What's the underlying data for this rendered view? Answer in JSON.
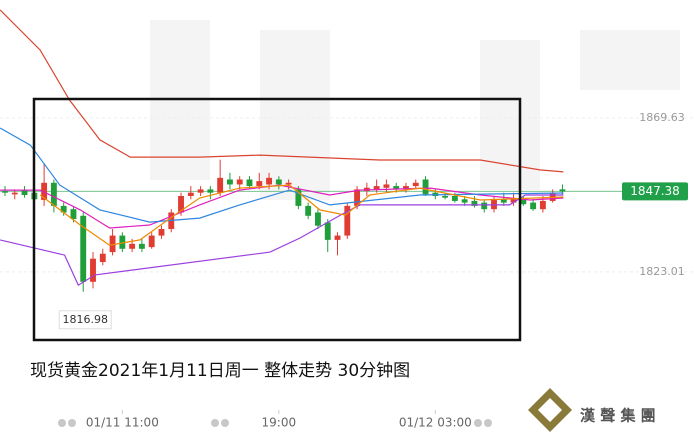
{
  "chart_data": {
    "type": "candlestick",
    "caption": "现货黄金2021年1月11日周一 整体走势  30分钟图",
    "logo_text": "漢 聲 集 團",
    "xlim": [
      -0.51,
      70.45
    ],
    "ylim": [
      1781.15,
      1905.39
    ],
    "xticks": [
      {
        "value": 12,
        "label": "01/11 11:00"
      },
      {
        "value": 28,
        "label": "19:00"
      },
      {
        "value": 44,
        "label": "01/12 03:00"
      }
    ],
    "yticks": [
      1869.63,
      1823.01
    ],
    "grid": true,
    "last_price": 1847.38,
    "last_price_color": "#21a04a",
    "low_annotation": 1816.98,
    "candles": {
      "up_color": "#e03c31",
      "down_color": "#1f9e3a",
      "open": [
        1847.5,
        1846.5,
        1847.8,
        1847,
        1844.8,
        1850,
        1843,
        1842,
        1840,
        1820,
        1826,
        1829,
        1834,
        1830,
        1831.5,
        1830.5,
        1834,
        1836,
        1841,
        1846,
        1847,
        1848,
        1847,
        1851,
        1849.5,
        1851,
        1849,
        1849.5,
        1851,
        1849.5,
        1848,
        1843,
        1841,
        1838,
        1832.7,
        1834,
        1843,
        1847.5,
        1848,
        1848.5,
        1849,
        1848,
        1849,
        1851,
        1847,
        1846,
        1846,
        1845,
        1844.5,
        1844,
        1842,
        1845,
        1844,
        1845,
        1844,
        1842,
        1844.5,
        1848
      ],
      "high": [
        1849,
        1848,
        1849,
        1848.5,
        1856,
        1851,
        1844,
        1843,
        1841,
        1829,
        1830,
        1836,
        1835,
        1833,
        1833,
        1835,
        1837,
        1842,
        1847,
        1849,
        1849,
        1849,
        1857,
        1853,
        1852,
        1852,
        1853,
        1853,
        1852,
        1851,
        1849,
        1844,
        1842,
        1839,
        1835,
        1844,
        1849,
        1850,
        1851,
        1851,
        1850,
        1850,
        1851,
        1852,
        1848,
        1847,
        1847,
        1846,
        1846,
        1845,
        1846,
        1847,
        1847,
        1846,
        1845,
        1846,
        1848,
        1849.5
      ],
      "low": [
        1846,
        1845,
        1845.5,
        1844,
        1843,
        1841,
        1840,
        1838,
        1816.98,
        1818,
        1825,
        1828,
        1829,
        1829,
        1829,
        1830,
        1833,
        1835,
        1840,
        1845,
        1846,
        1845,
        1846,
        1848,
        1848,
        1848,
        1848,
        1848,
        1848,
        1848,
        1842,
        1839,
        1836,
        1829,
        1828,
        1833,
        1842,
        1846,
        1847,
        1847,
        1847,
        1847,
        1848,
        1846,
        1845,
        1845,
        1844,
        1843,
        1842.5,
        1841,
        1841,
        1843,
        1843,
        1843,
        1841.5,
        1841,
        1844,
        1846.5
      ],
      "close": [
        1847,
        1847,
        1846.3,
        1845,
        1850,
        1843,
        1841,
        1839,
        1820,
        1827,
        1828.5,
        1834,
        1830,
        1831.5,
        1830,
        1834,
        1836,
        1841,
        1846,
        1847,
        1848,
        1847,
        1851.5,
        1849.5,
        1851,
        1849,
        1850.5,
        1851.5,
        1849.5,
        1850,
        1843,
        1840,
        1837,
        1832.7,
        1834,
        1843,
        1848,
        1848.5,
        1849,
        1849.5,
        1848,
        1849,
        1850,
        1846.5,
        1846,
        1845.5,
        1844.5,
        1844,
        1843,
        1842,
        1845,
        1844,
        1845,
        1843.5,
        1842,
        1844.5,
        1847,
        1847.4
      ]
    },
    "lines": [
      {
        "color": "#d9452f",
        "x": [
          -0.5,
          3.6,
          6.6,
          9.7,
          12.8,
          19.9,
          26.1,
          38.3,
          48.6,
          54.7,
          57.1
        ],
        "values": [
          1902.4,
          1890.2,
          1875.1,
          1863,
          1857.8,
          1857.8,
          1858.4,
          1856.9,
          1856.9,
          1853.9,
          1853.3
        ]
      },
      {
        "color": "#9b3fe0",
        "x": [
          -0.5,
          6.1,
          7.5,
          9.2,
          27.1,
          30.2,
          34.3,
          36.3,
          51.6,
          53.2,
          57.1
        ],
        "values": [
          1832.7,
          1828.1,
          1819,
          1822.1,
          1829,
          1833.3,
          1840.2,
          1843.3,
          1843.3,
          1846.3,
          1846.3
        ]
      },
      {
        "color": "#e020c0",
        "x": [
          -0.5,
          3.6,
          7.7,
          10.7,
          14.8,
          19.9,
          24.0,
          28.1,
          33.2,
          36.3,
          43.5,
          48.6,
          53.7,
          57.1
        ],
        "values": [
          1847.8,
          1847.8,
          1841.8,
          1836.3,
          1837.2,
          1843.3,
          1847.8,
          1849.3,
          1846.3,
          1847.8,
          1848.4,
          1846.3,
          1844.8,
          1845.4
        ]
      },
      {
        "color": "#2f86e0",
        "x": [
          -0.5,
          2.6,
          5.6,
          9.7,
          14.8,
          19.9,
          24.0,
          29.1,
          33.2,
          42.4,
          57.1
        ],
        "values": [
          1866.6,
          1861.4,
          1849.3,
          1841.8,
          1838.1,
          1839.3,
          1843.3,
          1847.8,
          1843.3,
          1846.3,
          1846.9
        ]
      },
      {
        "color": "#f08a00",
        "x": [
          3.6,
          7.7,
          10.7,
          13.8,
          16.9,
          19.9,
          24.0,
          29.1,
          32.2,
          34.8,
          37.3,
          42.4,
          48.6,
          57.1
        ],
        "values": [
          1846.3,
          1837.2,
          1831.1,
          1832.7,
          1839.3,
          1845.4,
          1848.4,
          1849.3,
          1841.8,
          1840.2,
          1846.3,
          1848.4,
          1844.8,
          1845.7
        ]
      }
    ]
  }
}
